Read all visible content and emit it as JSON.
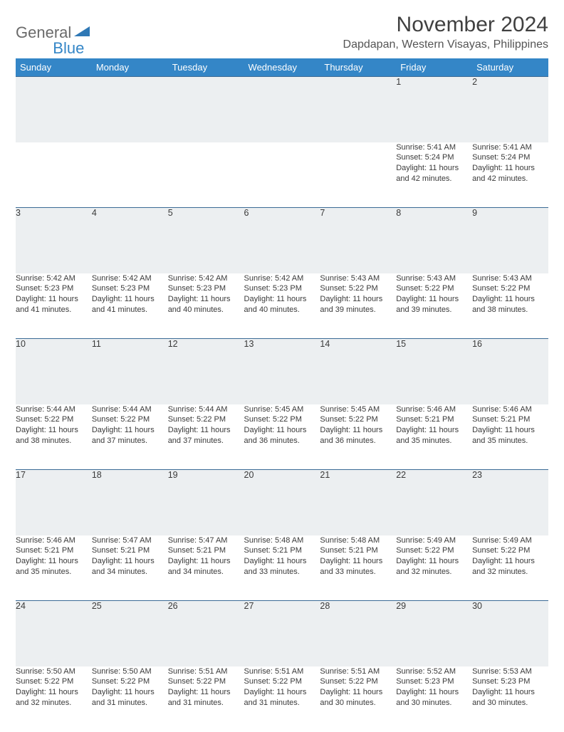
{
  "brand": {
    "part1": "General",
    "part2": "Blue",
    "icon_color": "#2f78b5"
  },
  "title": "November 2024",
  "location": "Dapdapan, Western Visayas, Philippines",
  "colors": {
    "header_bg": "#3486c7",
    "header_text": "#ffffff",
    "daynum_bg": "#eceff1",
    "row_border": "#3a6a95",
    "body_text": "#3a3a3a"
  },
  "day_headers": [
    "Sunday",
    "Monday",
    "Tuesday",
    "Wednesday",
    "Thursday",
    "Friday",
    "Saturday"
  ],
  "weeks": [
    [
      null,
      null,
      null,
      null,
      null,
      {
        "n": "1",
        "sr": "5:41 AM",
        "ss": "5:24 PM",
        "dl": "11 hours and 42 minutes."
      },
      {
        "n": "2",
        "sr": "5:41 AM",
        "ss": "5:24 PM",
        "dl": "11 hours and 42 minutes."
      }
    ],
    [
      {
        "n": "3",
        "sr": "5:42 AM",
        "ss": "5:23 PM",
        "dl": "11 hours and 41 minutes."
      },
      {
        "n": "4",
        "sr": "5:42 AM",
        "ss": "5:23 PM",
        "dl": "11 hours and 41 minutes."
      },
      {
        "n": "5",
        "sr": "5:42 AM",
        "ss": "5:23 PM",
        "dl": "11 hours and 40 minutes."
      },
      {
        "n": "6",
        "sr": "5:42 AM",
        "ss": "5:23 PM",
        "dl": "11 hours and 40 minutes."
      },
      {
        "n": "7",
        "sr": "5:43 AM",
        "ss": "5:22 PM",
        "dl": "11 hours and 39 minutes."
      },
      {
        "n": "8",
        "sr": "5:43 AM",
        "ss": "5:22 PM",
        "dl": "11 hours and 39 minutes."
      },
      {
        "n": "9",
        "sr": "5:43 AM",
        "ss": "5:22 PM",
        "dl": "11 hours and 38 minutes."
      }
    ],
    [
      {
        "n": "10",
        "sr": "5:44 AM",
        "ss": "5:22 PM",
        "dl": "11 hours and 38 minutes."
      },
      {
        "n": "11",
        "sr": "5:44 AM",
        "ss": "5:22 PM",
        "dl": "11 hours and 37 minutes."
      },
      {
        "n": "12",
        "sr": "5:44 AM",
        "ss": "5:22 PM",
        "dl": "11 hours and 37 minutes."
      },
      {
        "n": "13",
        "sr": "5:45 AM",
        "ss": "5:22 PM",
        "dl": "11 hours and 36 minutes."
      },
      {
        "n": "14",
        "sr": "5:45 AM",
        "ss": "5:22 PM",
        "dl": "11 hours and 36 minutes."
      },
      {
        "n": "15",
        "sr": "5:46 AM",
        "ss": "5:21 PM",
        "dl": "11 hours and 35 minutes."
      },
      {
        "n": "16",
        "sr": "5:46 AM",
        "ss": "5:21 PM",
        "dl": "11 hours and 35 minutes."
      }
    ],
    [
      {
        "n": "17",
        "sr": "5:46 AM",
        "ss": "5:21 PM",
        "dl": "11 hours and 35 minutes."
      },
      {
        "n": "18",
        "sr": "5:47 AM",
        "ss": "5:21 PM",
        "dl": "11 hours and 34 minutes."
      },
      {
        "n": "19",
        "sr": "5:47 AM",
        "ss": "5:21 PM",
        "dl": "11 hours and 34 minutes."
      },
      {
        "n": "20",
        "sr": "5:48 AM",
        "ss": "5:21 PM",
        "dl": "11 hours and 33 minutes."
      },
      {
        "n": "21",
        "sr": "5:48 AM",
        "ss": "5:21 PM",
        "dl": "11 hours and 33 minutes."
      },
      {
        "n": "22",
        "sr": "5:49 AM",
        "ss": "5:22 PM",
        "dl": "11 hours and 32 minutes."
      },
      {
        "n": "23",
        "sr": "5:49 AM",
        "ss": "5:22 PM",
        "dl": "11 hours and 32 minutes."
      }
    ],
    [
      {
        "n": "24",
        "sr": "5:50 AM",
        "ss": "5:22 PM",
        "dl": "11 hours and 32 minutes."
      },
      {
        "n": "25",
        "sr": "5:50 AM",
        "ss": "5:22 PM",
        "dl": "11 hours and 31 minutes."
      },
      {
        "n": "26",
        "sr": "5:51 AM",
        "ss": "5:22 PM",
        "dl": "11 hours and 31 minutes."
      },
      {
        "n": "27",
        "sr": "5:51 AM",
        "ss": "5:22 PM",
        "dl": "11 hours and 31 minutes."
      },
      {
        "n": "28",
        "sr": "5:51 AM",
        "ss": "5:22 PM",
        "dl": "11 hours and 30 minutes."
      },
      {
        "n": "29",
        "sr": "5:52 AM",
        "ss": "5:23 PM",
        "dl": "11 hours and 30 minutes."
      },
      {
        "n": "30",
        "sr": "5:53 AM",
        "ss": "5:23 PM",
        "dl": "11 hours and 30 minutes."
      }
    ]
  ],
  "labels": {
    "sunrise": "Sunrise:",
    "sunset": "Sunset:",
    "daylight": "Daylight:"
  }
}
